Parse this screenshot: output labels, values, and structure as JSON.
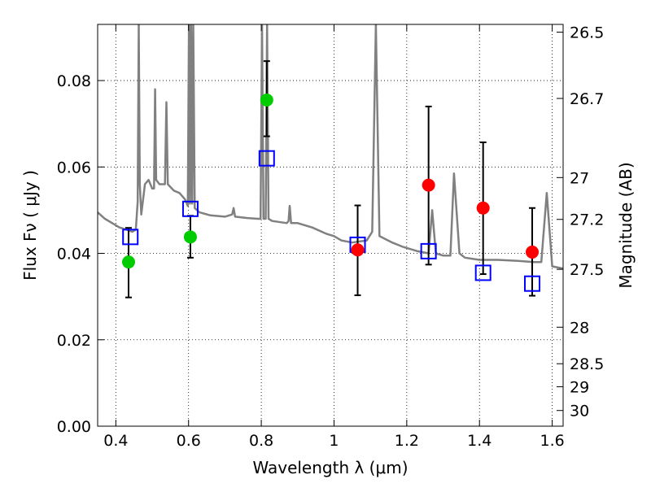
{
  "chart_data": {
    "type": "scatter",
    "xlabel": "Wavelength  λ (μm)",
    "ylabel": "Flux  Fν  ( μJy )",
    "y2label": "Magnitude (AB)",
    "xlim": [
      0.35,
      1.63
    ],
    "ylim": [
      0.0,
      0.093
    ],
    "grid": true,
    "x_ticks": [
      {
        "v": 0.4,
        "label": "0.4"
      },
      {
        "v": 0.6,
        "label": "0.6"
      },
      {
        "v": 0.8,
        "label": "0.8"
      },
      {
        "v": 1.0,
        "label": "1"
      },
      {
        "v": 1.2,
        "label": "1.2"
      },
      {
        "v": 1.4,
        "label": "1.4"
      },
      {
        "v": 1.6,
        "label": "1.6"
      }
    ],
    "y_ticks": [
      {
        "v": 0.0,
        "label": "0.00"
      },
      {
        "v": 0.02,
        "label": "0.02"
      },
      {
        "v": 0.04,
        "label": "0.04"
      },
      {
        "v": 0.06,
        "label": "0.06"
      },
      {
        "v": 0.08,
        "label": "0.08"
      }
    ],
    "y2_ticks": [
      {
        "mag": 26.5,
        "label": "26.5"
      },
      {
        "mag": 26.7,
        "label": "26.7"
      },
      {
        "mag": 27,
        "label": "27"
      },
      {
        "mag": 27.2,
        "label": "27.2"
      },
      {
        "mag": 27.5,
        "label": "27.5"
      },
      {
        "mag": 28,
        "label": "28"
      },
      {
        "mag": 28.5,
        "label": "28.5"
      },
      {
        "mag": 29,
        "label": "29"
      },
      {
        "mag": 30,
        "label": "30"
      }
    ],
    "series": [
      {
        "kind": "model_spectrum",
        "color": "#808080",
        "points": [
          [
            0.35,
            0.0495
          ],
          [
            0.37,
            0.048
          ],
          [
            0.39,
            0.047
          ],
          [
            0.41,
            0.046
          ],
          [
            0.43,
            0.0455
          ],
          [
            0.445,
            0.045
          ],
          [
            0.455,
            0.0455
          ],
          [
            0.46,
            0.052
          ],
          [
            0.463,
            0.093
          ],
          [
            0.466,
            0.056
          ],
          [
            0.47,
            0.049
          ],
          [
            0.48,
            0.056
          ],
          [
            0.49,
            0.057
          ],
          [
            0.5,
            0.055
          ],
          [
            0.505,
            0.055
          ],
          [
            0.508,
            0.078
          ],
          [
            0.511,
            0.057
          ],
          [
            0.52,
            0.056
          ],
          [
            0.535,
            0.056
          ],
          [
            0.539,
            0.075
          ],
          [
            0.543,
            0.056
          ],
          [
            0.56,
            0.0545
          ],
          [
            0.575,
            0.054
          ],
          [
            0.59,
            0.0525
          ],
          [
            0.598,
            0.051
          ],
          [
            0.601,
            0.093
          ],
          [
            0.604,
            0.0515
          ],
          [
            0.607,
            0.093
          ],
          [
            0.61,
            0.0515
          ],
          [
            0.613,
            0.093
          ],
          [
            0.617,
            0.0505
          ],
          [
            0.63,
            0.0495
          ],
          [
            0.66,
            0.0488
          ],
          [
            0.7,
            0.0485
          ],
          [
            0.72,
            0.049
          ],
          [
            0.724,
            0.0505
          ],
          [
            0.728,
            0.0485
          ],
          [
            0.76,
            0.0482
          ],
          [
            0.79,
            0.048
          ],
          [
            0.798,
            0.048
          ],
          [
            0.802,
            0.093
          ],
          [
            0.806,
            0.048
          ],
          [
            0.812,
            0.048
          ],
          [
            0.816,
            0.093
          ],
          [
            0.82,
            0.048
          ],
          [
            0.83,
            0.0475
          ],
          [
            0.87,
            0.047
          ],
          [
            0.875,
            0.0475
          ],
          [
            0.878,
            0.051
          ],
          [
            0.882,
            0.047
          ],
          [
            0.9,
            0.047
          ],
          [
            0.94,
            0.046
          ],
          [
            0.98,
            0.0445
          ],
          [
            1.0,
            0.044
          ],
          [
            1.02,
            0.043
          ],
          [
            1.05,
            0.0425
          ],
          [
            1.09,
            0.043
          ],
          [
            1.105,
            0.045
          ],
          [
            1.115,
            0.093
          ],
          [
            1.125,
            0.044
          ],
          [
            1.16,
            0.0425
          ],
          [
            1.19,
            0.0415
          ],
          [
            1.23,
            0.0405
          ],
          [
            1.26,
            0.04
          ],
          [
            1.27,
            0.05
          ],
          [
            1.28,
            0.04
          ],
          [
            1.3,
            0.0395
          ],
          [
            1.32,
            0.0395
          ],
          [
            1.33,
            0.0585
          ],
          [
            1.345,
            0.04
          ],
          [
            1.36,
            0.039
          ],
          [
            1.4,
            0.0385
          ],
          [
            1.45,
            0.0385
          ],
          [
            1.5,
            0.0383
          ],
          [
            1.55,
            0.038
          ],
          [
            1.57,
            0.038
          ],
          [
            1.585,
            0.054
          ],
          [
            1.6,
            0.037
          ],
          [
            1.63,
            0.0365
          ]
        ]
      },
      {
        "kind": "observed_points",
        "points": [
          {
            "x": 0.435,
            "y": 0.038,
            "err_lo": 0.0298,
            "err_hi": 0.0459,
            "color": "#00cc00"
          },
          {
            "x": 0.605,
            "y": 0.0438,
            "err_lo": 0.039,
            "err_hi": 0.0487,
            "color": "#00cc00"
          },
          {
            "x": 0.815,
            "y": 0.0755,
            "err_lo": 0.0671,
            "err_hi": 0.0845,
            "color": "#00cc00"
          },
          {
            "x": 1.065,
            "y": 0.0408,
            "err_lo": 0.0303,
            "err_hi": 0.0511,
            "color": "#ff0000"
          },
          {
            "x": 1.26,
            "y": 0.0558,
            "err_lo": 0.0374,
            "err_hi": 0.074,
            "color": "#ff0000"
          },
          {
            "x": 1.41,
            "y": 0.0505,
            "err_lo": 0.0352,
            "err_hi": 0.0657,
            "color": "#ff0000"
          },
          {
            "x": 1.545,
            "y": 0.0403,
            "err_lo": 0.0302,
            "err_hi": 0.0505,
            "color": "#ff0000"
          }
        ]
      },
      {
        "kind": "model_photometry",
        "color": "#0000ff",
        "points": [
          {
            "x": 0.44,
            "y": 0.0438
          },
          {
            "x": 0.605,
            "y": 0.0503
          },
          {
            "x": 0.815,
            "y": 0.062
          },
          {
            "x": 1.065,
            "y": 0.042
          },
          {
            "x": 1.26,
            "y": 0.0405
          },
          {
            "x": 1.41,
            "y": 0.0355
          },
          {
            "x": 1.545,
            "y": 0.033
          }
        ]
      }
    ]
  }
}
